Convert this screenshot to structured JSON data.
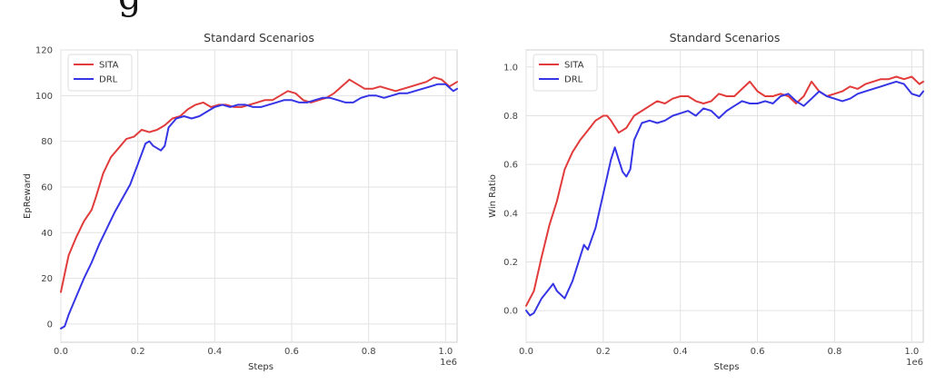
{
  "heading_fragment": "g",
  "colors": {
    "SITA": "#e23b3b",
    "DRL": "#3535e6",
    "grid": "#e2e2e2",
    "frame": "#cfcfcf"
  },
  "chart_data": [
    {
      "type": "line",
      "title": "Standard Scenarios",
      "xlabel": "Steps",
      "ylabel": "EpReward",
      "x_offset_label": "1e6",
      "xlim": [
        0,
        1.03
      ],
      "ylim": [
        -8,
        120
      ],
      "xticks": [
        0.0,
        0.2,
        0.4,
        0.6,
        0.8,
        1.0
      ],
      "xtick_labels": [
        "0.0",
        "0.2",
        "0.4",
        "0.6",
        "0.8",
        "1.0"
      ],
      "yticks": [
        0,
        20,
        40,
        60,
        80,
        100,
        120
      ],
      "ytick_labels": [
        "0",
        "20",
        "40",
        "60",
        "80",
        "100",
        "120"
      ],
      "grid": true,
      "legend_position": "top-left",
      "series": [
        {
          "name": "SITA",
          "color": "#e23b3b",
          "x": [
            0.0,
            0.01,
            0.02,
            0.04,
            0.06,
            0.08,
            0.09,
            0.11,
            0.13,
            0.15,
            0.17,
            0.19,
            0.21,
            0.23,
            0.25,
            0.27,
            0.29,
            0.31,
            0.33,
            0.35,
            0.37,
            0.39,
            0.41,
            0.43,
            0.45,
            0.47,
            0.49,
            0.51,
            0.53,
            0.55,
            0.57,
            0.59,
            0.61,
            0.63,
            0.65,
            0.67,
            0.69,
            0.71,
            0.73,
            0.75,
            0.77,
            0.79,
            0.81,
            0.83,
            0.85,
            0.87,
            0.89,
            0.91,
            0.93,
            0.95,
            0.97,
            0.99,
            1.01,
            1.03
          ],
          "y": [
            14,
            22,
            30,
            38,
            45,
            50,
            55,
            66,
            73,
            77,
            81,
            82,
            85,
            84,
            85,
            87,
            90,
            91,
            94,
            96,
            97,
            95,
            96,
            96,
            95,
            95,
            96,
            97,
            98,
            98,
            100,
            102,
            101,
            98,
            97,
            98,
            99,
            101,
            104,
            107,
            105,
            103,
            103,
            104,
            103,
            102,
            103,
            104,
            105,
            106,
            108,
            107,
            104,
            106
          ]
        },
        {
          "name": "DRL",
          "color": "#3535e6",
          "x": [
            0.0,
            0.01,
            0.02,
            0.04,
            0.06,
            0.08,
            0.1,
            0.12,
            0.14,
            0.16,
            0.18,
            0.2,
            0.22,
            0.23,
            0.24,
            0.25,
            0.26,
            0.27,
            0.28,
            0.3,
            0.32,
            0.34,
            0.36,
            0.38,
            0.4,
            0.42,
            0.44,
            0.46,
            0.48,
            0.5,
            0.52,
            0.54,
            0.56,
            0.58,
            0.6,
            0.62,
            0.64,
            0.66,
            0.68,
            0.7,
            0.72,
            0.74,
            0.76,
            0.78,
            0.8,
            0.82,
            0.84,
            0.86,
            0.88,
            0.9,
            0.92,
            0.94,
            0.96,
            0.98,
            1.0,
            1.02,
            1.03
          ],
          "y": [
            -2,
            -1,
            4,
            12,
            20,
            27,
            35,
            42,
            49,
            55,
            61,
            70,
            79,
            80,
            78,
            77,
            76,
            78,
            86,
            90,
            91,
            90,
            91,
            93,
            95,
            96,
            95,
            96,
            96,
            95,
            95,
            96,
            97,
            98,
            98,
            97,
            97,
            98,
            99,
            99,
            98,
            97,
            97,
            99,
            100,
            100,
            99,
            100,
            101,
            101,
            102,
            103,
            104,
            105,
            105,
            102,
            103
          ]
        }
      ]
    },
    {
      "type": "line",
      "title": "Standard Scenarios",
      "xlabel": "Steps",
      "ylabel": "Win Ratio",
      "x_offset_label": "1e6",
      "xlim": [
        0,
        1.03
      ],
      "ylim": [
        -0.13,
        1.07
      ],
      "xticks": [
        0.0,
        0.2,
        0.4,
        0.6,
        0.8,
        1.0
      ],
      "xtick_labels": [
        "0.0",
        "0.2",
        "0.4",
        "0.6",
        "0.8",
        "1.0"
      ],
      "yticks": [
        0.0,
        0.2,
        0.4,
        0.6,
        0.8,
        1.0
      ],
      "ytick_labels": [
        "0.0",
        "0.2",
        "0.4",
        "0.6",
        "0.8",
        "1.0"
      ],
      "grid": true,
      "legend_position": "top-left",
      "series": [
        {
          "name": "SITA",
          "color": "#e23b3b",
          "x": [
            0.0,
            0.02,
            0.04,
            0.06,
            0.08,
            0.1,
            0.12,
            0.14,
            0.16,
            0.18,
            0.2,
            0.21,
            0.22,
            0.24,
            0.26,
            0.28,
            0.3,
            0.32,
            0.34,
            0.36,
            0.38,
            0.4,
            0.42,
            0.44,
            0.46,
            0.48,
            0.5,
            0.52,
            0.54,
            0.56,
            0.58,
            0.6,
            0.62,
            0.64,
            0.66,
            0.68,
            0.7,
            0.72,
            0.74,
            0.76,
            0.78,
            0.8,
            0.82,
            0.84,
            0.86,
            0.88,
            0.9,
            0.92,
            0.94,
            0.96,
            0.98,
            1.0,
            1.02,
            1.03
          ],
          "y": [
            0.02,
            0.08,
            0.22,
            0.35,
            0.45,
            0.58,
            0.65,
            0.7,
            0.74,
            0.78,
            0.8,
            0.8,
            0.78,
            0.73,
            0.75,
            0.8,
            0.82,
            0.84,
            0.86,
            0.85,
            0.87,
            0.88,
            0.88,
            0.86,
            0.85,
            0.86,
            0.89,
            0.88,
            0.88,
            0.91,
            0.94,
            0.9,
            0.88,
            0.88,
            0.89,
            0.88,
            0.85,
            0.88,
            0.94,
            0.9,
            0.88,
            0.89,
            0.9,
            0.92,
            0.91,
            0.93,
            0.94,
            0.95,
            0.95,
            0.96,
            0.95,
            0.96,
            0.93,
            0.94
          ]
        },
        {
          "name": "DRL",
          "color": "#3535e6",
          "x": [
            0.0,
            0.01,
            0.02,
            0.04,
            0.06,
            0.07,
            0.08,
            0.1,
            0.12,
            0.14,
            0.15,
            0.16,
            0.18,
            0.2,
            0.22,
            0.23,
            0.24,
            0.25,
            0.26,
            0.27,
            0.28,
            0.3,
            0.32,
            0.34,
            0.36,
            0.38,
            0.4,
            0.42,
            0.44,
            0.46,
            0.48,
            0.5,
            0.52,
            0.54,
            0.56,
            0.58,
            0.6,
            0.62,
            0.64,
            0.66,
            0.68,
            0.7,
            0.72,
            0.74,
            0.76,
            0.78,
            0.8,
            0.82,
            0.84,
            0.86,
            0.88,
            0.9,
            0.92,
            0.94,
            0.96,
            0.98,
            1.0,
            1.02,
            1.03
          ],
          "y": [
            0.0,
            -0.02,
            -0.01,
            0.05,
            0.09,
            0.11,
            0.08,
            0.05,
            0.12,
            0.22,
            0.27,
            0.25,
            0.34,
            0.48,
            0.62,
            0.67,
            0.62,
            0.57,
            0.55,
            0.58,
            0.7,
            0.77,
            0.78,
            0.77,
            0.78,
            0.8,
            0.81,
            0.82,
            0.8,
            0.83,
            0.82,
            0.79,
            0.82,
            0.84,
            0.86,
            0.85,
            0.85,
            0.86,
            0.85,
            0.88,
            0.89,
            0.86,
            0.84,
            0.87,
            0.9,
            0.88,
            0.87,
            0.86,
            0.87,
            0.89,
            0.9,
            0.91,
            0.92,
            0.93,
            0.94,
            0.93,
            0.89,
            0.88,
            0.9
          ]
        }
      ]
    }
  ]
}
